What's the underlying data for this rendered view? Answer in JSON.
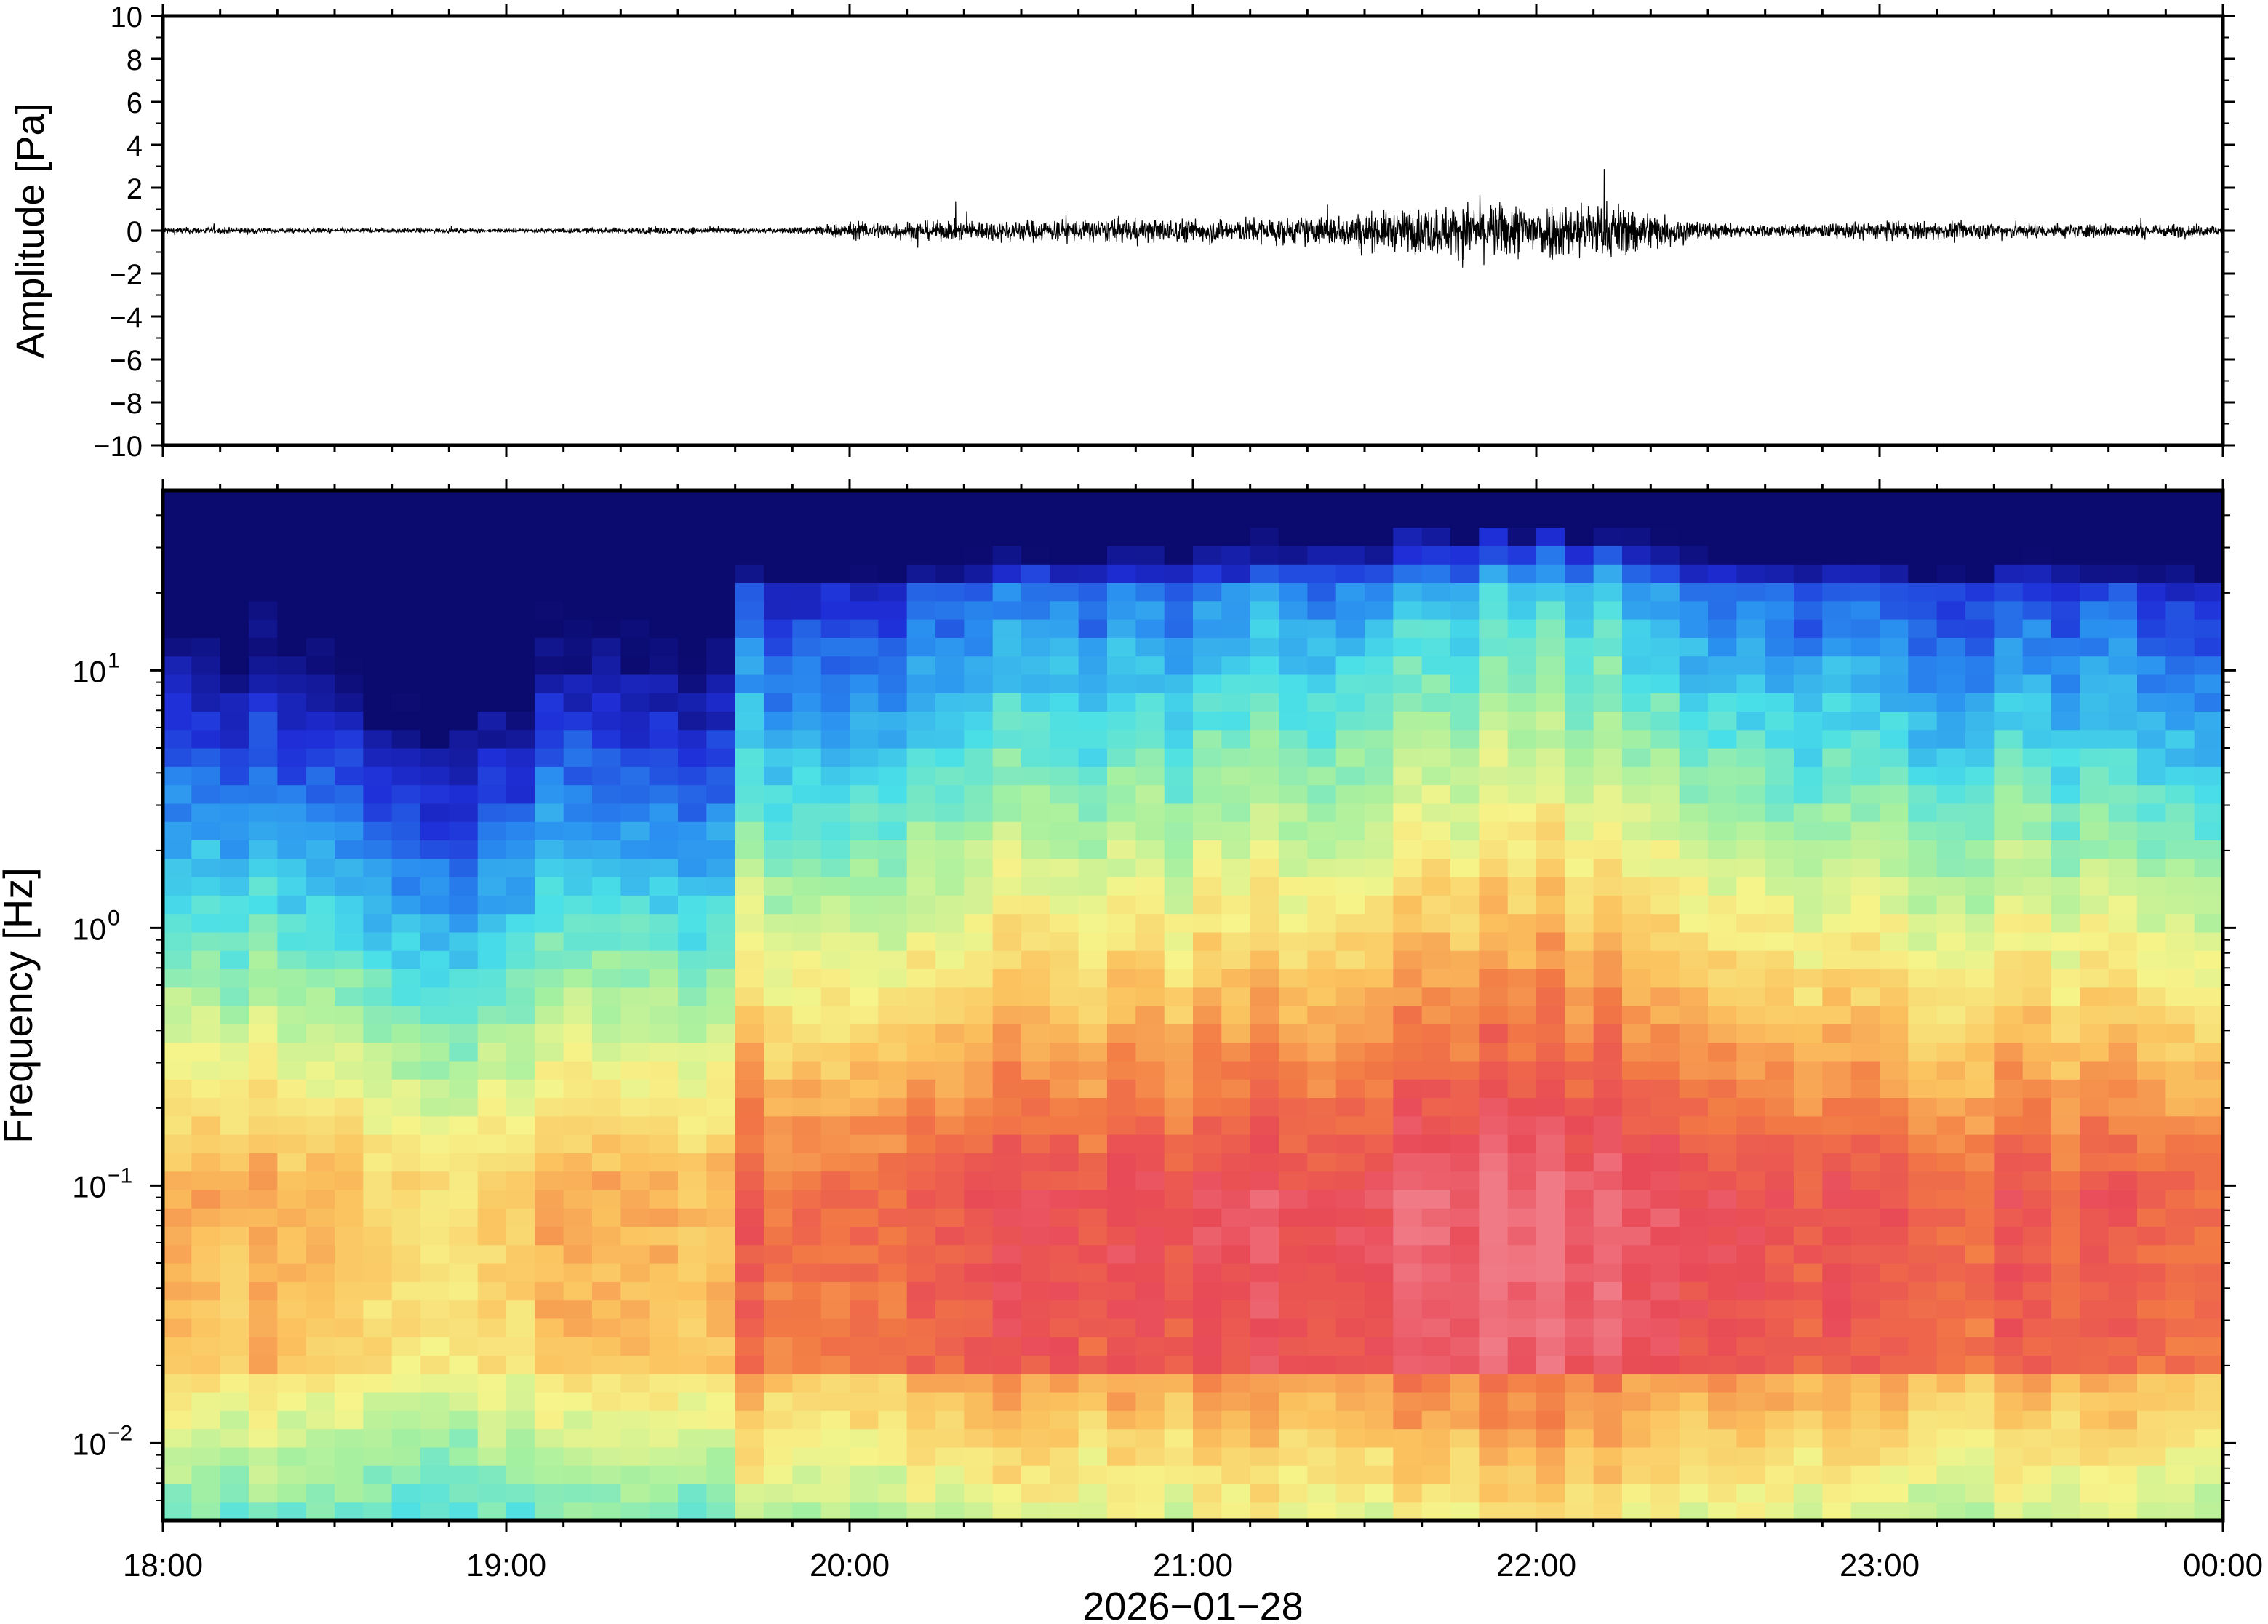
{
  "chart_data": [
    {
      "type": "line",
      "panel": "waveform",
      "ylabel": "Amplitude [Pa]",
      "ylim": [
        -10,
        10
      ],
      "yticks": [
        10,
        8,
        6,
        4,
        2,
        0,
        -2,
        -4,
        -6,
        -8,
        -10
      ],
      "ytick_labels": [
        "10",
        "8",
        "6",
        "4",
        "2",
        "0",
        "−2",
        "−4",
        "−6",
        "−8",
        "−10"
      ],
      "grid": false,
      "series_color": "#000000",
      "envelope": {
        "x_hours": [
          0.0,
          0.5,
          1.0,
          1.5,
          1.8,
          2.0,
          2.5,
          3.0,
          3.3,
          3.6,
          3.8,
          4.0,
          4.2,
          4.3,
          4.5,
          4.8,
          5.0,
          5.5,
          6.0
        ],
        "amplitude": [
          0.3,
          0.2,
          0.15,
          0.3,
          0.2,
          0.7,
          0.9,
          1.0,
          1.1,
          1.7,
          2.3,
          2.3,
          2.5,
          1.9,
          0.6,
          0.5,
          0.8,
          0.6,
          0.5
        ]
      }
    },
    {
      "type": "heatmap",
      "panel": "spectrogram",
      "ylabel": "Frequency [Hz]",
      "yscale": "log",
      "ylim": [
        0.005,
        50
      ],
      "ytick_values": [
        0.01,
        0.1,
        1,
        10
      ],
      "ytick_labels": [
        {
          "base": "10",
          "exp": "−2"
        },
        {
          "base": "10",
          "exp": "−1"
        },
        {
          "base": "10",
          "exp": "0"
        },
        {
          "base": "10",
          "exp": "1"
        }
      ],
      "xlabel": "2026−01−28",
      "xticks": [
        "18:00",
        "19:00",
        "20:00",
        "21:00",
        "22:00",
        "23:00",
        "00:00"
      ],
      "colormap": "rainbow (blue = low, red = high)",
      "colormap_stops": [
        "#0b0a6e",
        "#1f2fd8",
        "#2a8ff0",
        "#49dfe8",
        "#a6f0a0",
        "#f6f48a",
        "#fbc25f",
        "#f27a45",
        "#e84a56",
        "#f07a86"
      ],
      "intensity_profile": {
        "x_hours": [
          0.0,
          0.5,
          0.6,
          1.0,
          1.1,
          1.2,
          1.5,
          1.6,
          1.7,
          2.0,
          2.5,
          3.0,
          3.3,
          3.6,
          3.8,
          4.0,
          4.2,
          4.4,
          4.5,
          4.8,
          5.0,
          5.5,
          6.0
        ],
        "level": [
          0.25,
          0.2,
          0.0,
          0.0,
          0.3,
          0.25,
          0.1,
          0.1,
          0.55,
          0.6,
          0.7,
          0.75,
          0.8,
          0.9,
          0.95,
          0.95,
          0.95,
          0.85,
          0.7,
          0.6,
          0.65,
          0.6,
          0.55
        ]
      }
    }
  ]
}
